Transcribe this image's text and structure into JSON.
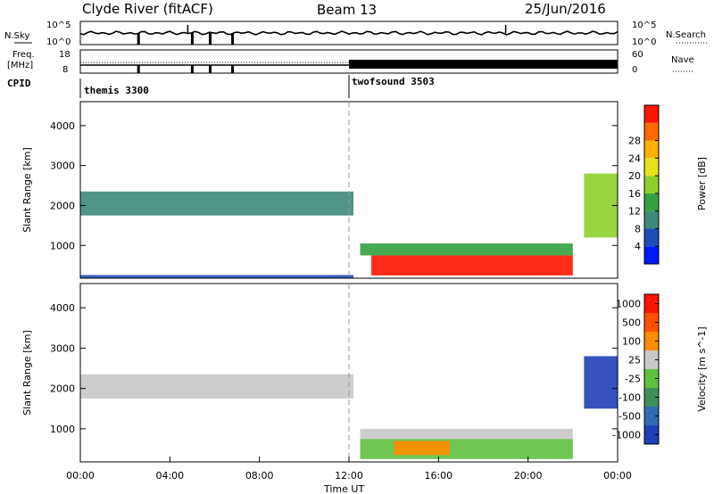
{
  "header": {
    "station": "Clyde River (fitACF)",
    "beam": "Beam 13",
    "date": "25/Jun/2016"
  },
  "noise_panel": {
    "left_label": "N.Sky",
    "right_label": "N.Search",
    "left_ticks": [
      "10^5",
      "10^0"
    ],
    "right_ticks": [
      "10^5",
      "10^0"
    ]
  },
  "freq_panel": {
    "left_label_1": "Freq.",
    "left_label_2": "[MHz]",
    "right_label": "Nave",
    "left_ticks": [
      "18",
      "8"
    ],
    "right_ticks": [
      "60",
      "0"
    ]
  },
  "cpid": {
    "label": "CPID",
    "programs": [
      {
        "name": "themis 3300",
        "start_hour": 0
      },
      {
        "name": "twofsound 3503",
        "start_hour": 12
      }
    ]
  },
  "time_axis": {
    "label": "Time UT",
    "ticks": [
      "00:00",
      "04:00",
      "08:00",
      "12:00",
      "16:00",
      "20:00",
      "00:00"
    ]
  },
  "chart_data": [
    {
      "type": "heatmap",
      "name": "power",
      "xlabel": "",
      "ylabel": "Slant Range [km]",
      "xlim": [
        0,
        24
      ],
      "ylim": [
        180,
        4600
      ],
      "yticks": [
        "1000",
        "2000",
        "3000",
        "4000"
      ],
      "colorbar": {
        "label": "Power [dB]",
        "ticks": [
          "4",
          "8",
          "12",
          "16",
          "20",
          "24",
          "28"
        ],
        "colors": [
          "#0018ff",
          "#1f4db8",
          "#3d8a7a",
          "#35a040",
          "#8ccf2a",
          "#e6e21a",
          "#ffb000",
          "#ff6a00",
          "#ff1400"
        ]
      },
      "regions": [
        {
          "t": [
            0.0,
            12.2
          ],
          "r": [
            1750,
            2350
          ],
          "level": 2
        },
        {
          "t": [
            0.0,
            12.2
          ],
          "r": [
            180,
            260
          ],
          "level": 1
        },
        {
          "t": [
            13.0,
            22.0
          ],
          "r": [
            250,
            750
          ],
          "level": 8
        },
        {
          "t": [
            12.5,
            22.0
          ],
          "r": [
            750,
            1050
          ],
          "level": 3
        },
        {
          "t": [
            22.5,
            24.0
          ],
          "r": [
            1200,
            2800
          ],
          "level": 4
        }
      ]
    },
    {
      "type": "heatmap",
      "name": "velocity",
      "xlabel": "Time UT",
      "ylabel": "Slant Range [km]",
      "xlim": [
        0,
        24
      ],
      "ylim": [
        180,
        4600
      ],
      "yticks": [
        "1000",
        "2000",
        "3000",
        "4000"
      ],
      "colorbar": {
        "label": "Velocity [m s^-1]",
        "ticks": [
          "1000",
          "500",
          "100",
          "25",
          "-25",
          "-100",
          "-500",
          "-1000"
        ],
        "colors": [
          "#1f3fb8",
          "#2e6bb0",
          "#3f8f5a",
          "#5fc040",
          "#c8c8c8",
          "#ff8c00",
          "#ff5000",
          "#ff1400"
        ]
      },
      "regions": [
        {
          "t": [
            0.0,
            12.2
          ],
          "r": [
            1750,
            2350
          ],
          "level": 4
        },
        {
          "t": [
            12.5,
            22.0
          ],
          "r": [
            250,
            750
          ],
          "level": 3
        },
        {
          "t": [
            12.5,
            22.0
          ],
          "r": [
            750,
            1000
          ],
          "level": 4
        },
        {
          "t": [
            14.0,
            16.5
          ],
          "r": [
            350,
            700
          ],
          "level": 5
        },
        {
          "t": [
            22.5,
            24.0
          ],
          "r": [
            1500,
            2800
          ],
          "level": 0
        }
      ]
    }
  ]
}
